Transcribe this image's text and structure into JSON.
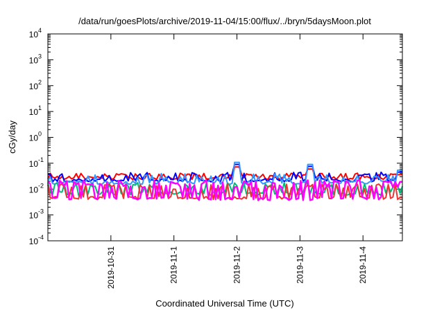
{
  "chart_data": {
    "type": "line",
    "title": "/data/run/goesPlots/archive/2019-11-04/15:00/flux/../bryn/5daysMoon.plot",
    "xlabel": "Coordinated Universal Time (UTC)",
    "ylabel": "cGy/day",
    "y_scale": "log",
    "ylim": [
      0.0001,
      10000
    ],
    "y_ticks": [
      {
        "base": "10",
        "exp": "-4",
        "value": 0.0001
      },
      {
        "base": "10",
        "exp": "-3",
        "value": 0.001
      },
      {
        "base": "10",
        "exp": "-2",
        "value": 0.01
      },
      {
        "base": "10",
        "exp": "-1",
        "value": 0.1
      },
      {
        "base": "10",
        "exp": "0",
        "value": 1
      },
      {
        "base": "10",
        "exp": "1",
        "value": 10
      },
      {
        "base": "10",
        "exp": "2",
        "value": 100
      },
      {
        "base": "10",
        "exp": "3",
        "value": 1000
      },
      {
        "base": "10",
        "exp": "4",
        "value": 10000
      }
    ],
    "xlim": [
      "2019-10-30 00:00",
      "2019-11-04 15:00"
    ],
    "x_ticks": [
      "2019-10-31",
      "2019-11-1",
      "2019-11-2",
      "2019-11-3",
      "2019-11-4"
    ],
    "grid": false,
    "legend": "none",
    "series": [
      {
        "color": "#ff0000",
        "base": 0.027,
        "spike": 0.042,
        "seed": 3,
        "spike_rate": 0.32
      },
      {
        "color": "#0000ff",
        "base": 0.022,
        "spike": 0.045,
        "seed": 7,
        "spike_rate": 0.3
      },
      {
        "color": "#3399ff",
        "base": 0.018,
        "spike": 0.04,
        "seed": 11,
        "spike_rate": 0.3
      },
      {
        "color": "#00bb77",
        "base": 0.0068,
        "spike": 0.018,
        "seed": 17,
        "spike_rate": 0.35
      },
      {
        "color": "#ee3333",
        "base": 0.0046,
        "spike": 0.016,
        "seed": 23,
        "spike_rate": 0.4
      },
      {
        "color": "#ff00ff",
        "base": 0.0043,
        "spike": 0.022,
        "seed": 29,
        "spike_rate": 0.5
      }
    ],
    "events": [
      {
        "x": "2019-11-02 00:03",
        "y": 0.12
      },
      {
        "x": "2019-11-03 04:00",
        "y": 0.1
      },
      {
        "x": "2019-11-04 14:00",
        "y": 0.06
      }
    ]
  }
}
